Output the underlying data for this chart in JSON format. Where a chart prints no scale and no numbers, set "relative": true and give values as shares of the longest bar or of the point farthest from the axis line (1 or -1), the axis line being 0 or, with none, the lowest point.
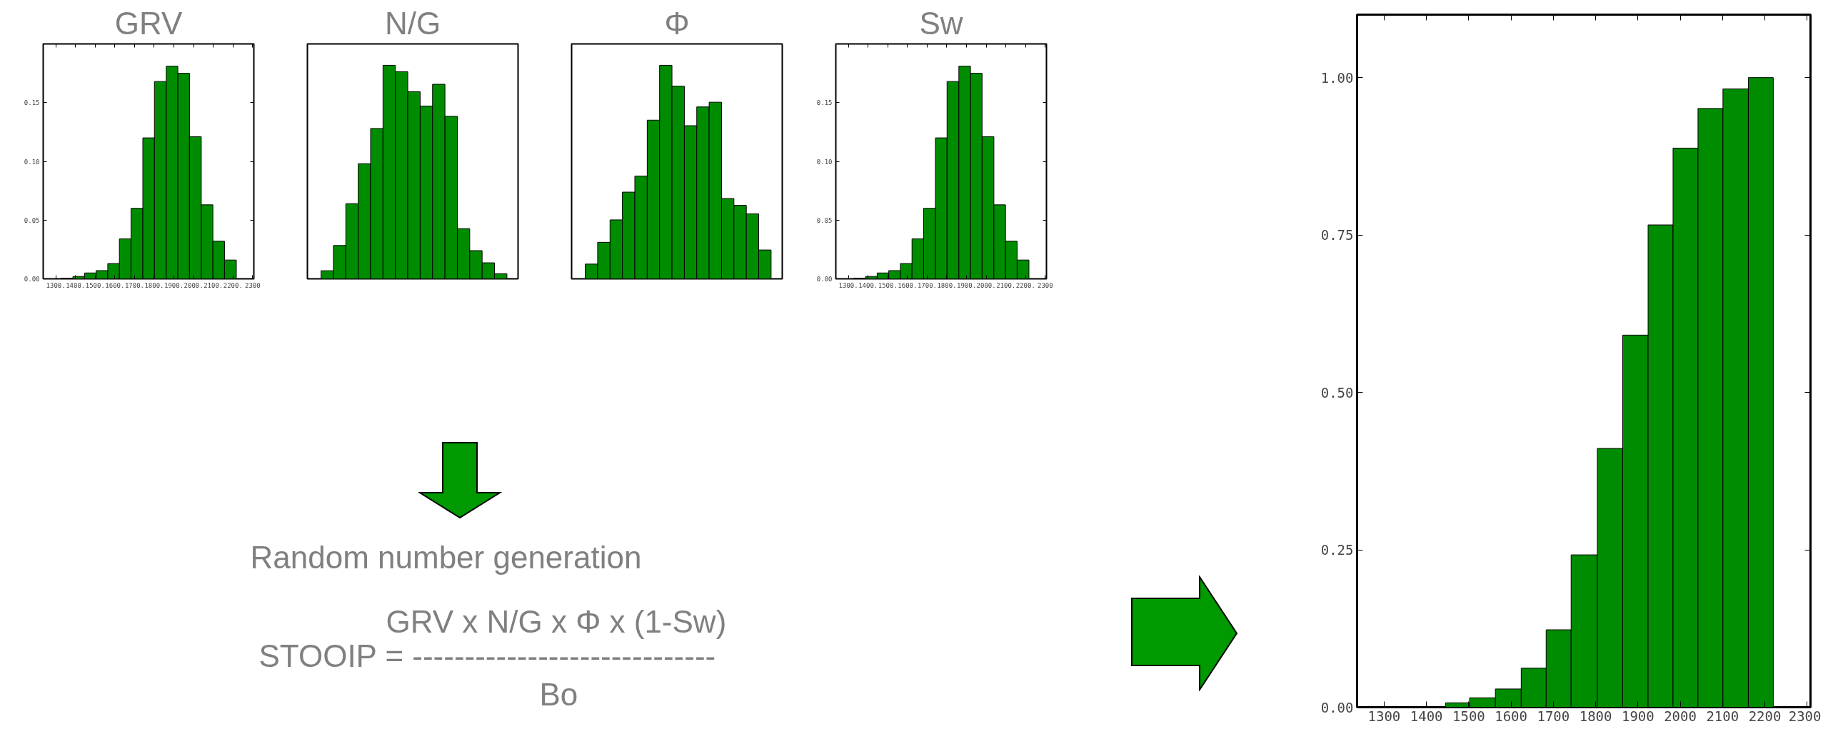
{
  "chart_data": [
    {
      "type": "histogram",
      "title": "GRV",
      "color": "#008c00",
      "bins": [
        1327,
        1387,
        1446,
        1505,
        1564,
        1623,
        1682,
        1742,
        1801,
        1861,
        1920,
        1979,
        2039,
        2098,
        2157,
        2217
      ],
      "values": [
        0.0006,
        0.002,
        0.005,
        0.007,
        0.013,
        0.034,
        0.06,
        0.12,
        0.168,
        0.181,
        0.175,
        0.121,
        0.063,
        0.032,
        0.016
      ],
      "xlim": [
        1236,
        2306
      ],
      "ylim": [
        0,
        0.2
      ],
      "xticks": [
        {
          "value": 1300,
          "label": "1300."
        },
        {
          "value": 1400,
          "label": "1400."
        },
        {
          "value": 1500,
          "label": "1500."
        },
        {
          "value": 1600,
          "label": "1600."
        },
        {
          "value": 1700,
          "label": "1700."
        },
        {
          "value": 1800,
          "label": "1800."
        },
        {
          "value": 1900,
          "label": "1900."
        },
        {
          "value": 2000,
          "label": "2000."
        },
        {
          "value": 2100,
          "label": "2100."
        },
        {
          "value": 2200,
          "label": "2200."
        },
        {
          "value": 2300,
          "label": "2300"
        }
      ],
      "yticks": [
        {
          "value": 0,
          "label": "0.00"
        },
        {
          "value": 0.05,
          "label": "0.05"
        },
        {
          "value": 0.1,
          "label": "0.10"
        },
        {
          "value": 0.15,
          "label": "0.15"
        }
      ]
    },
    {
      "type": "bar",
      "title": "N/G",
      "color": "#008c00",
      "relative": true,
      "categories": [
        null,
        null,
        null,
        null,
        null,
        null,
        null,
        null,
        null,
        null,
        null,
        null,
        null,
        null,
        null
      ],
      "values": [
        0.038,
        0.156,
        0.352,
        0.539,
        0.704,
        1.0,
        0.97,
        0.876,
        0.809,
        0.911,
        0.761,
        0.235,
        0.132,
        0.075,
        0.024
      ]
    },
    {
      "type": "bar",
      "title": "Φ",
      "color": "#008c00",
      "relative": true,
      "categories": [
        null,
        null,
        null,
        null,
        null,
        null,
        null,
        null,
        null,
        null,
        null,
        null,
        null,
        null,
        null
      ],
      "values": [
        0.069,
        0.171,
        0.276,
        0.406,
        0.481,
        0.743,
        1.0,
        0.902,
        0.717,
        0.805,
        0.827,
        0.376,
        0.344,
        0.304,
        0.135
      ]
    },
    {
      "type": "histogram",
      "title": "Sw",
      "color": "#008c00",
      "bins": [
        1327,
        1387,
        1446,
        1505,
        1564,
        1623,
        1682,
        1742,
        1801,
        1861,
        1920,
        1979,
        2039,
        2098,
        2157,
        2217
      ],
      "values": [
        0.0006,
        0.002,
        0.005,
        0.007,
        0.013,
        0.034,
        0.06,
        0.12,
        0.168,
        0.181,
        0.175,
        0.121,
        0.063,
        0.032,
        0.016
      ],
      "xlim": [
        1236,
        2306
      ],
      "ylim": [
        0,
        0.2
      ],
      "xticks": [
        {
          "value": 1300,
          "label": "1300."
        },
        {
          "value": 1400,
          "label": "1400."
        },
        {
          "value": 1500,
          "label": "1500."
        },
        {
          "value": 1600,
          "label": "1600."
        },
        {
          "value": 1700,
          "label": "1700."
        },
        {
          "value": 1800,
          "label": "1800."
        },
        {
          "value": 1900,
          "label": "1900."
        },
        {
          "value": 2000,
          "label": "2000."
        },
        {
          "value": 2100,
          "label": "2100."
        },
        {
          "value": 2200,
          "label": "2200."
        },
        {
          "value": 2300,
          "label": "2300"
        }
      ],
      "yticks": [
        {
          "value": 0,
          "label": "0.00"
        },
        {
          "value": 0.05,
          "label": "0.05"
        },
        {
          "value": 0.1,
          "label": "0.10"
        },
        {
          "value": 0.15,
          "label": "0.15"
        }
      ]
    },
    {
      "type": "other",
      "annotations": [
        "Random number generation",
        "GRV x N/G x Φ x (1-Sw)",
        "STOOIP = -----------------------------",
        "Bo"
      ]
    },
    {
      "type": "histogram",
      "color": "#008c00",
      "bins": [
        1445,
        1502,
        1563,
        1624,
        1683,
        1742,
        1804,
        1864,
        1924,
        1983,
        2042,
        2101,
        2161,
        2220
      ],
      "values": [
        0.007,
        0.015,
        0.029,
        0.062,
        0.123,
        0.242,
        0.411,
        0.591,
        0.766,
        0.888,
        0.951,
        0.982,
        1.0
      ],
      "xlim": [
        1236,
        2308
      ],
      "ylim": [
        0,
        1.1
      ],
      "xticks": [
        1300,
        1400,
        1500,
        1600,
        1700,
        1800,
        1900,
        2000,
        2100,
        2200,
        2300
      ],
      "yticks": [
        {
          "value": 0,
          "label": "0.00"
        },
        {
          "value": 0.25,
          "label": "0.25"
        },
        {
          "value": 0.5,
          "label": "0.50"
        },
        {
          "value": 0.75,
          "label": "0.75"
        },
        {
          "value": 1,
          "label": "1.00"
        }
      ]
    }
  ]
}
